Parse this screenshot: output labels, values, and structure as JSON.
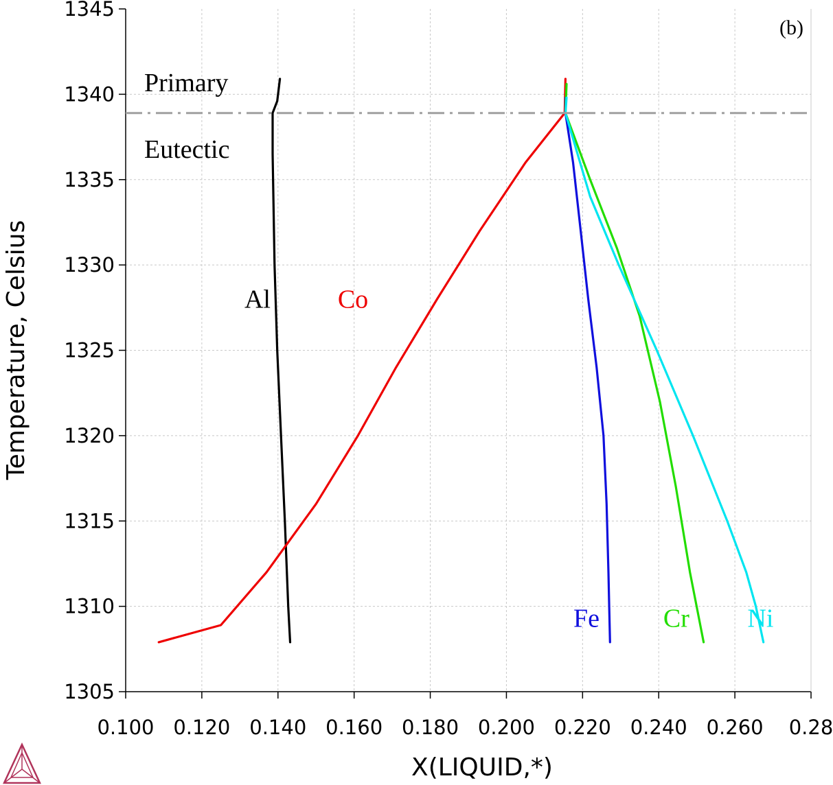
{
  "chart_data": {
    "type": "line",
    "panel_label": "(b)",
    "xlabel": "X(LIQUID,*)",
    "ylabel": "Temperature, Celsius",
    "xlim": [
      0.1,
      0.28
    ],
    "ylim": [
      1305,
      1345
    ],
    "x_ticks": [
      "0.100",
      "0.120",
      "0.140",
      "0.160",
      "0.180",
      "0.200",
      "0.220",
      "0.240",
      "0.260",
      "0.28"
    ],
    "y_ticks": [
      "1305",
      "1310",
      "1315",
      "1320",
      "1325",
      "1330",
      "1335",
      "1340",
      "1345"
    ],
    "grid": true,
    "region_labels": {
      "above": "Primary",
      "below": "Eutectic"
    },
    "eutectic_line": {
      "y": 1338.9,
      "color": "#a0a0a0",
      "style": "dash-dot"
    },
    "series": [
      {
        "name": "Al",
        "color": "#000000",
        "points": [
          [
            0.1405,
            1340.9
          ],
          [
            0.1398,
            1339.6
          ],
          [
            0.1386,
            1338.9
          ],
          [
            0.1386,
            1336.5
          ],
          [
            0.1391,
            1330
          ],
          [
            0.1398,
            1325
          ],
          [
            0.1408,
            1320
          ],
          [
            0.1418,
            1315
          ],
          [
            0.1427,
            1310
          ],
          [
            0.1432,
            1307.9
          ]
        ]
      },
      {
        "name": "Co",
        "color": "#ee0000",
        "points": [
          [
            0.2155,
            1340.9
          ],
          [
            0.2153,
            1338.9
          ],
          [
            0.205,
            1336
          ],
          [
            0.193,
            1332
          ],
          [
            0.1818,
            1328
          ],
          [
            0.171,
            1324
          ],
          [
            0.161,
            1320
          ],
          [
            0.15,
            1316
          ],
          [
            0.137,
            1312
          ],
          [
            0.125,
            1308.9
          ],
          [
            0.1087,
            1307.9
          ]
        ]
      },
      {
        "name": "Fe",
        "color": "#1010dd",
        "points": [
          [
            0.2155,
            1339.8
          ],
          [
            0.2155,
            1338.9
          ],
          [
            0.2175,
            1336
          ],
          [
            0.2195,
            1332
          ],
          [
            0.2215,
            1328
          ],
          [
            0.2237,
            1324
          ],
          [
            0.2255,
            1320
          ],
          [
            0.2263,
            1316
          ],
          [
            0.2268,
            1312
          ],
          [
            0.227,
            1310
          ],
          [
            0.2272,
            1307.9
          ]
        ]
      },
      {
        "name": "Cr",
        "color": "#22dd00",
        "points": [
          [
            0.2158,
            1340.6
          ],
          [
            0.2155,
            1338.9
          ],
          [
            0.222,
            1335
          ],
          [
            0.229,
            1331
          ],
          [
            0.235,
            1327
          ],
          [
            0.2403,
            1322
          ],
          [
            0.2445,
            1317
          ],
          [
            0.2482,
            1312
          ],
          [
            0.2518,
            1307.9
          ]
        ]
      },
      {
        "name": "Ni",
        "color": "#00e5f0",
        "points": [
          [
            0.2158,
            1339.8
          ],
          [
            0.2155,
            1338.9
          ],
          [
            0.222,
            1334
          ],
          [
            0.2295,
            1330
          ],
          [
            0.2395,
            1325
          ],
          [
            0.249,
            1320
          ],
          [
            0.258,
            1315
          ],
          [
            0.263,
            1312
          ],
          [
            0.2655,
            1310
          ],
          [
            0.2675,
            1307.9
          ]
        ]
      }
    ],
    "series_labels": [
      {
        "name": "Al",
        "x": 0.1312,
        "y": 1327.5,
        "color": "#000000"
      },
      {
        "name": "Co",
        "x": 0.1557,
        "y": 1327.5,
        "color": "#ee0000"
      },
      {
        "name": "Fe",
        "x": 0.2176,
        "y": 1308.8,
        "color": "#1010dd"
      },
      {
        "name": "Cr",
        "x": 0.2412,
        "y": 1308.8,
        "color": "#22dd00"
      },
      {
        "name": "Ni",
        "x": 0.2633,
        "y": 1308.8,
        "color": "#00e5f0"
      }
    ]
  }
}
